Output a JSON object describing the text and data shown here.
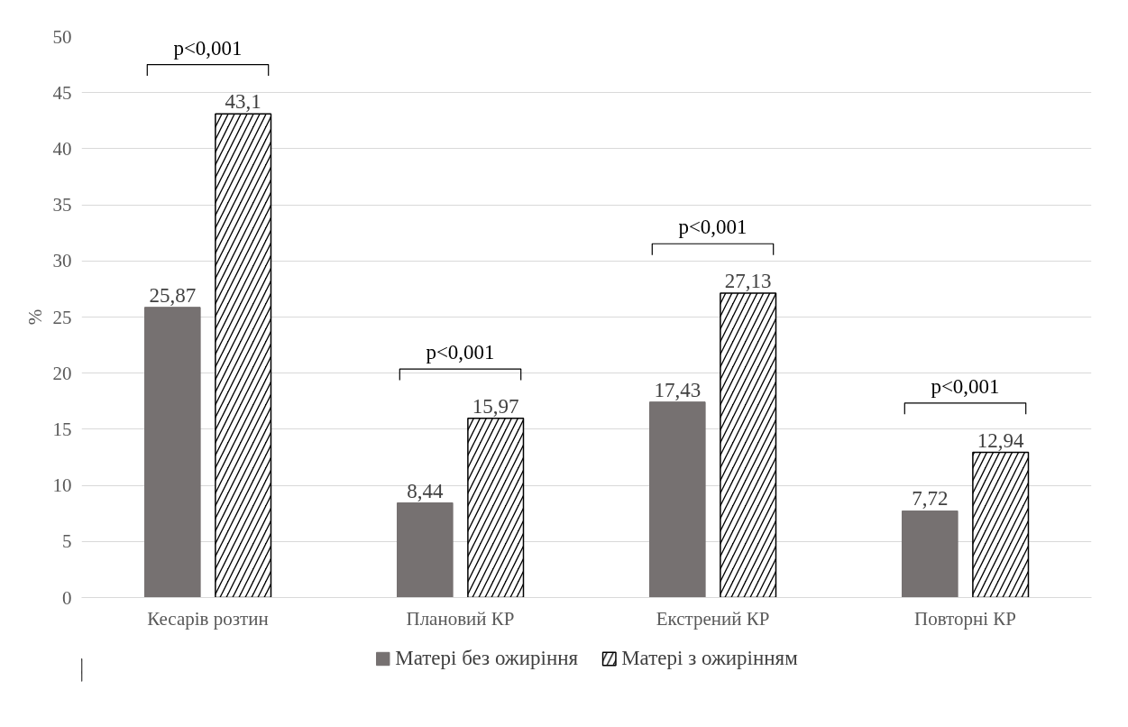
{
  "chart_data": {
    "type": "bar",
    "ylabel": "%",
    "categories": [
      "Кесарів розтин",
      "Плановий КР",
      "Екстрений КР",
      "Повторні КР"
    ],
    "series": [
      {
        "name": "Матері без ожиріння",
        "color": "#767171",
        "values": [
          25.87,
          8.44,
          17.43,
          7.72
        ],
        "value_labels": [
          "25,87",
          "8,44",
          "17,43",
          "7,72"
        ]
      },
      {
        "name": "Матері з ожирінням",
        "color": "#000000",
        "values": [
          43.1,
          15.97,
          27.13,
          12.94
        ],
        "value_labels": [
          "43,1",
          "15,97",
          "27,13",
          "12,94"
        ]
      }
    ],
    "ylim": [
      0,
      50
    ],
    "yticks": [
      0,
      5,
      10,
      15,
      20,
      25,
      30,
      35,
      40,
      45,
      50
    ],
    "grid": "y",
    "legend": "bottom",
    "annotations": [
      "p<0,001",
      "p<0,001",
      "p<0,001",
      "p<0,001"
    ]
  }
}
